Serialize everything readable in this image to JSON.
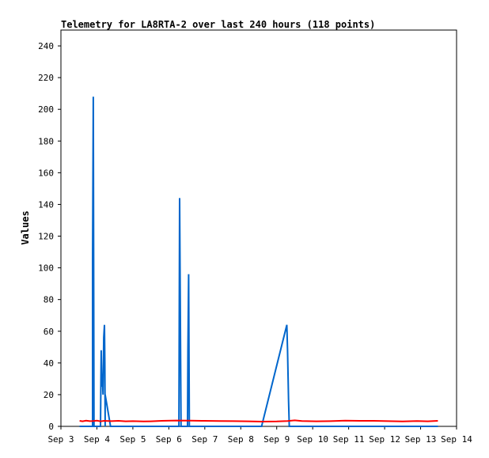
{
  "chart_data": {
    "type": "line",
    "title": "Telemetry for LA8RTA-2 over last 240 hours (118 points)",
    "xlabel": "",
    "ylabel": "Values",
    "ylim": [
      0,
      250
    ],
    "y_ticks": [
      0,
      20,
      40,
      60,
      80,
      100,
      120,
      140,
      160,
      180,
      200,
      220,
      240
    ],
    "x_ticks": [
      "Sep 3",
      "Sep 4",
      "Sep 5",
      "Sep 6",
      "Sep 7",
      "Sep 8",
      "Sep 9",
      "Sep 10",
      "Sep 11",
      "Sep 12",
      "Sep 13",
      "Sep 14"
    ],
    "x_range_days": [
      3,
      14
    ],
    "grid": false,
    "series": [
      {
        "color": "#0066cc",
        "points": [
          [
            3.52,
            0
          ],
          [
            3.88,
            0
          ],
          [
            3.88,
            104
          ],
          [
            3.9,
            208
          ],
          [
            3.92,
            0
          ],
          [
            4.1,
            0
          ],
          [
            4.12,
            48
          ],
          [
            4.14,
            25
          ],
          [
            4.15,
            33
          ],
          [
            4.17,
            20
          ],
          [
            4.19,
            56
          ],
          [
            4.21,
            64
          ],
          [
            4.22,
            40
          ],
          [
            4.23,
            0
          ],
          [
            4.23,
            20
          ],
          [
            4.38,
            0
          ],
          [
            6.28,
            0
          ],
          [
            6.3,
            144
          ],
          [
            6.32,
            72
          ],
          [
            6.34,
            0
          ],
          [
            6.52,
            0
          ],
          [
            6.53,
            48
          ],
          [
            6.55,
            96
          ],
          [
            6.57,
            0
          ],
          [
            8.58,
            0
          ],
          [
            9.28,
            64
          ],
          [
            9.3,
            48
          ],
          [
            9.33,
            16
          ],
          [
            9.35,
            0
          ],
          [
            13.48,
            0
          ]
        ]
      },
      {
        "color": "#ff0000",
        "points": [
          [
            3.52,
            3.5
          ],
          [
            3.6,
            3.2
          ],
          [
            3.7,
            3.6
          ],
          [
            3.8,
            3.3
          ],
          [
            3.9,
            3.4
          ],
          [
            4.0,
            3.6
          ],
          [
            4.1,
            3.2
          ],
          [
            4.2,
            3.5
          ],
          [
            4.4,
            3.3
          ],
          [
            4.6,
            3.5
          ],
          [
            4.8,
            3.2
          ],
          [
            5.0,
            3.3
          ],
          [
            5.3,
            3.1
          ],
          [
            5.5,
            3.2
          ],
          [
            5.8,
            3.5
          ],
          [
            6.2,
            3.7
          ],
          [
            6.6,
            3.6
          ],
          [
            7.0,
            3.5
          ],
          [
            7.4,
            3.4
          ],
          [
            7.8,
            3.3
          ],
          [
            8.2,
            3.2
          ],
          [
            8.6,
            3.0
          ],
          [
            9.0,
            3.1
          ],
          [
            9.3,
            3.4
          ],
          [
            9.5,
            3.8
          ],
          [
            9.7,
            3.4
          ],
          [
            10.1,
            3.2
          ],
          [
            10.5,
            3.3
          ],
          [
            10.9,
            3.6
          ],
          [
            11.3,
            3.5
          ],
          [
            11.7,
            3.5
          ],
          [
            12.1,
            3.3
          ],
          [
            12.5,
            3.1
          ],
          [
            12.9,
            3.4
          ],
          [
            13.2,
            3.2
          ],
          [
            13.48,
            3.5
          ]
        ]
      }
    ]
  }
}
